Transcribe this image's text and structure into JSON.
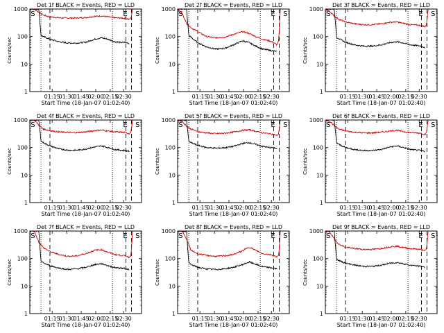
{
  "chart_data": [
    {
      "type": "line",
      "title": "Det 1f BLACK = Events, RED = LLD",
      "xlabel": "Start Time (18-Jan-07 01:02:40)",
      "ylabel": "Counts/sec",
      "x_ticks": [
        "01:15",
        "01:30",
        "01:45",
        "02:00",
        "02:15",
        "02:30"
      ],
      "y_ticks": [
        "1",
        "10",
        "100",
        "1000"
      ],
      "yscale": "log",
      "ylim": [
        1,
        1000
      ],
      "markers": [
        "S",
        "E",
        "S"
      ],
      "series": [
        {
          "color": "#cc0000",
          "x": [
            0.0,
            0.04,
            0.08,
            0.12,
            0.18,
            0.26,
            0.34,
            0.42,
            0.5,
            0.58,
            0.64,
            0.7,
            0.76,
            0.82,
            0.86,
            0.89,
            0.905,
            0.92
          ],
          "y": [
            1000,
            1000,
            760,
            600,
            520,
            480,
            470,
            470,
            490,
            540,
            560,
            520,
            480,
            470,
            460,
            420,
            460,
            1000
          ]
        },
        {
          "color": "#000000",
          "x": [
            0.0,
            0.08,
            0.1,
            0.12,
            0.18,
            0.26,
            0.34,
            0.42,
            0.5,
            0.58,
            0.64,
            0.7,
            0.76,
            0.82,
            0.86,
            0.89
          ],
          "y": [
            1000,
            1000,
            110,
            100,
            80,
            65,
            58,
            58,
            62,
            80,
            90,
            80,
            65,
            60,
            62,
            55
          ]
        }
      ]
    },
    {
      "type": "line",
      "title": "Det 2f BLACK = Events, RED = LLD",
      "xlabel": "Start Time (18-Jan-07 01:02:40)",
      "ylabel": "Counts/sec",
      "x_ticks": [
        "01:15",
        "01:30",
        "01:45",
        "02:00",
        "02:15",
        "02:30"
      ],
      "y_ticks": [
        "1",
        "10",
        "100",
        "1000"
      ],
      "yscale": "log",
      "ylim": [
        1,
        1000
      ],
      "markers": [
        "S",
        "E",
        "S"
      ],
      "series": [
        {
          "color": "#cc0000",
          "x": [
            0.0,
            0.04,
            0.08,
            0.12,
            0.18,
            0.26,
            0.34,
            0.42,
            0.5,
            0.58,
            0.64,
            0.7,
            0.76,
            0.82,
            0.86,
            0.89,
            0.905,
            0.92
          ],
          "y": [
            1000,
            700,
            300,
            210,
            150,
            100,
            90,
            95,
            120,
            150,
            130,
            100,
            80,
            70,
            60,
            50,
            70,
            1000
          ]
        },
        {
          "color": "#000000",
          "x": [
            0.0,
            0.08,
            0.1,
            0.12,
            0.18,
            0.26,
            0.34,
            0.42,
            0.5,
            0.58,
            0.64,
            0.7,
            0.76,
            0.82,
            0.86,
            0.89
          ],
          "y": [
            1000,
            1000,
            110,
            95,
            60,
            42,
            35,
            37,
            50,
            70,
            60,
            45,
            35,
            32,
            30,
            28
          ]
        }
      ]
    },
    {
      "type": "line",
      "title": "Det 3f BLACK = Events, RED = LLD",
      "xlabel": "Start Time (18-Jan-07 01:02:40)",
      "ylabel": "Counts/sec",
      "x_ticks": [
        "01:15",
        "01:30",
        "01:45",
        "02:00",
        "02:15",
        "02:30"
      ],
      "y_ticks": [
        "1",
        "10",
        "100",
        "1000"
      ],
      "yscale": "log",
      "ylim": [
        1,
        1000
      ],
      "markers": [
        "S",
        "E",
        "S"
      ],
      "series": [
        {
          "color": "#cc0000",
          "x": [
            0.0,
            0.04,
            0.08,
            0.12,
            0.18,
            0.26,
            0.34,
            0.42,
            0.5,
            0.58,
            0.64,
            0.7,
            0.76,
            0.82,
            0.86,
            0.89,
            0.905,
            0.92
          ],
          "y": [
            1000,
            800,
            560,
            420,
            340,
            290,
            270,
            270,
            290,
            330,
            340,
            300,
            270,
            260,
            250,
            230,
            260,
            1000
          ]
        },
        {
          "color": "#000000",
          "x": [
            0.0,
            0.08,
            0.1,
            0.12,
            0.18,
            0.26,
            0.34,
            0.42,
            0.5,
            0.58,
            0.64,
            0.7,
            0.76,
            0.82,
            0.86,
            0.89
          ],
          "y": [
            1000,
            1000,
            95,
            85,
            62,
            50,
            45,
            45,
            50,
            60,
            65,
            58,
            50,
            47,
            45,
            40
          ]
        }
      ]
    },
    {
      "type": "line",
      "title": "Det 4f BLACK = Events, RED = LLD",
      "xlabel": "Start Time (18-Jan-07 01:02:40)",
      "ylabel": "Counts/sec",
      "x_ticks": [
        "01:15",
        "01:30",
        "01:45",
        "02:00",
        "02:15",
        "02:30"
      ],
      "y_ticks": [
        "1",
        "10",
        "100",
        "1000"
      ],
      "yscale": "log",
      "ylim": [
        1,
        1000
      ],
      "markers": [
        "S",
        "E",
        "S"
      ],
      "series": [
        {
          "color": "#cc0000",
          "x": [
            0.0,
            0.04,
            0.08,
            0.12,
            0.18,
            0.26,
            0.34,
            0.42,
            0.5,
            0.58,
            0.64,
            0.7,
            0.76,
            0.82,
            0.86,
            0.89,
            0.905,
            0.92
          ],
          "y": [
            1000,
            1000,
            660,
            470,
            410,
            370,
            350,
            350,
            370,
            410,
            430,
            400,
            370,
            360,
            350,
            320,
            360,
            1000
          ]
        },
        {
          "color": "#000000",
          "x": [
            0.0,
            0.08,
            0.1,
            0.12,
            0.18,
            0.26,
            0.34,
            0.42,
            0.5,
            0.58,
            0.64,
            0.7,
            0.76,
            0.82,
            0.86,
            0.89
          ],
          "y": [
            1000,
            1000,
            180,
            150,
            115,
            90,
            80,
            80,
            88,
            105,
            115,
            100,
            85,
            80,
            78,
            72
          ]
        }
      ]
    },
    {
      "type": "line",
      "title": "Det 5f BLACK = Events, RED = LLD",
      "xlabel": "Start Time (18-Jan-07 01:02:40)",
      "ylabel": "Counts/sec",
      "x_ticks": [
        "01:15",
        "01:30",
        "01:45",
        "02:00",
        "02:15",
        "02:30"
      ],
      "y_ticks": [
        "1",
        "10",
        "100",
        "1000"
      ],
      "yscale": "log",
      "ylim": [
        1,
        1000
      ],
      "markers": [
        "S",
        "E",
        "S"
      ],
      "series": [
        {
          "color": "#cc0000",
          "x": [
            0.0,
            0.04,
            0.08,
            0.12,
            0.18,
            0.26,
            0.34,
            0.42,
            0.5,
            0.58,
            0.64,
            0.7,
            0.76,
            0.82,
            0.86,
            0.89,
            0.905,
            0.92
          ],
          "y": [
            1000,
            900,
            600,
            470,
            380,
            340,
            320,
            330,
            360,
            420,
            440,
            390,
            340,
            320,
            300,
            270,
            320,
            1000
          ]
        },
        {
          "color": "#000000",
          "x": [
            0.0,
            0.08,
            0.1,
            0.12,
            0.18,
            0.26,
            0.34,
            0.42,
            0.5,
            0.58,
            0.64,
            0.7,
            0.76,
            0.82,
            0.86,
            0.89
          ],
          "y": [
            1000,
            1000,
            170,
            150,
            120,
            100,
            95,
            98,
            110,
            140,
            150,
            130,
            110,
            100,
            98,
            90
          ]
        }
      ]
    },
    {
      "type": "line",
      "title": "Det 6f BLACK = Events, RED = LLD",
      "xlabel": "Start Time (18-Jan-07 01:02:40)",
      "ylabel": "Counts/sec",
      "x_ticks": [
        "01:15",
        "01:30",
        "01:45",
        "02:00",
        "02:15",
        "02:30"
      ],
      "y_ticks": [
        "1",
        "10",
        "100",
        "1000"
      ],
      "yscale": "log",
      "ylim": [
        1,
        1000
      ],
      "markers": [
        "S",
        "E",
        "S"
      ],
      "series": [
        {
          "color": "#cc0000",
          "x": [
            0.0,
            0.04,
            0.08,
            0.12,
            0.18,
            0.26,
            0.34,
            0.42,
            0.5,
            0.58,
            0.64,
            0.7,
            0.76,
            0.82,
            0.86,
            0.89,
            0.905,
            0.92
          ],
          "y": [
            1000,
            900,
            620,
            470,
            400,
            360,
            340,
            340,
            360,
            400,
            420,
            380,
            350,
            340,
            330,
            300,
            340,
            1000
          ]
        },
        {
          "color": "#000000",
          "x": [
            0.0,
            0.08,
            0.1,
            0.12,
            0.18,
            0.26,
            0.34,
            0.42,
            0.5,
            0.58,
            0.64,
            0.7,
            0.76,
            0.82,
            0.86,
            0.89
          ],
          "y": [
            1000,
            1000,
            150,
            130,
            100,
            85,
            78,
            78,
            85,
            105,
            115,
            100,
            85,
            80,
            78,
            72
          ]
        }
      ]
    },
    {
      "type": "line",
      "title": "Det 7f BLACK = Events, RED = LLD",
      "xlabel": "Start Time (18-Jan-07 01:02:40)",
      "ylabel": "Counts/sec",
      "x_ticks": [
        "01:15",
        "01:30",
        "01:45",
        "02:00",
        "02:15",
        "02:30"
      ],
      "y_ticks": [
        "1",
        "10",
        "100",
        "1000"
      ],
      "yscale": "log",
      "ylim": [
        1,
        1000
      ],
      "markers": [
        "S",
        "E",
        "S"
      ],
      "series": [
        {
          "color": "#cc0000",
          "x": [
            0.0,
            0.04,
            0.08,
            0.12,
            0.18,
            0.26,
            0.34,
            0.42,
            0.5,
            0.58,
            0.64,
            0.7,
            0.76,
            0.82,
            0.86,
            0.89,
            0.905,
            0.92
          ],
          "y": [
            1000,
            1000,
            400,
            250,
            180,
            140,
            120,
            125,
            150,
            200,
            210,
            170,
            140,
            130,
            125,
            110,
            130,
            1000
          ]
        },
        {
          "color": "#000000",
          "x": [
            0.0,
            0.08,
            0.1,
            0.12,
            0.18,
            0.26,
            0.34,
            0.42,
            0.5,
            0.58,
            0.64,
            0.7,
            0.76,
            0.82,
            0.86,
            0.89
          ],
          "y": [
            1000,
            1000,
            80,
            70,
            55,
            45,
            40,
            42,
            48,
            60,
            65,
            55,
            47,
            45,
            43,
            40
          ]
        }
      ]
    },
    {
      "type": "line",
      "title": "Det 8f BLACK = Events, RED = LLD",
      "xlabel": "Start Time (18-Jan-07 01:02:40)",
      "ylabel": "Counts/sec",
      "x_ticks": [
        "01:15",
        "01:30",
        "01:45",
        "02:00",
        "02:15",
        "02:30"
      ],
      "y_ticks": [
        "1",
        "10",
        "100",
        "1000"
      ],
      "yscale": "log",
      "ylim": [
        1,
        1000
      ],
      "markers": [
        "S",
        "E",
        "S"
      ],
      "series": [
        {
          "color": "#cc0000",
          "x": [
            0.0,
            0.04,
            0.08,
            0.12,
            0.18,
            0.26,
            0.34,
            0.42,
            0.5,
            0.58,
            0.64,
            0.7,
            0.76,
            0.82,
            0.86,
            0.89,
            0.905,
            0.92
          ],
          "y": [
            1000,
            1000,
            500,
            200,
            150,
            130,
            120,
            125,
            140,
            190,
            260,
            200,
            150,
            140,
            130,
            110,
            130,
            1000
          ]
        },
        {
          "color": "#000000",
          "x": [
            0.0,
            0.08,
            0.1,
            0.12,
            0.18,
            0.26,
            0.34,
            0.42,
            0.5,
            0.58,
            0.64,
            0.7,
            0.76,
            0.82,
            0.86,
            0.89
          ],
          "y": [
            1000,
            1000,
            70,
            60,
            48,
            42,
            40,
            42,
            48,
            60,
            75,
            62,
            50,
            47,
            45,
            42
          ]
        }
      ]
    },
    {
      "type": "line",
      "title": "Det 9f BLACK = Events, RED = LLD",
      "xlabel": "Start Time (18-Jan-07 01:02:40)",
      "ylabel": "Counts/sec",
      "x_ticks": [
        "01:15",
        "01:30",
        "01:45",
        "02:00",
        "02:15",
        "02:30"
      ],
      "y_ticks": [
        "1",
        "10",
        "100",
        "1000"
      ],
      "yscale": "log",
      "ylim": [
        1,
        1000
      ],
      "markers": [
        "S",
        "E",
        "S"
      ],
      "series": [
        {
          "color": "#cc0000",
          "x": [
            0.0,
            0.04,
            0.08,
            0.12,
            0.18,
            0.26,
            0.34,
            0.42,
            0.5,
            0.58,
            0.64,
            0.7,
            0.76,
            0.82,
            0.86,
            0.89,
            0.905,
            0.92
          ],
          "y": [
            1000,
            900,
            520,
            330,
            260,
            230,
            215,
            215,
            230,
            270,
            280,
            250,
            230,
            220,
            210,
            190,
            220,
            1000
          ]
        },
        {
          "color": "#000000",
          "x": [
            0.0,
            0.08,
            0.1,
            0.12,
            0.18,
            0.26,
            0.34,
            0.42,
            0.5,
            0.58,
            0.64,
            0.7,
            0.76,
            0.82,
            0.86,
            0.89
          ],
          "y": [
            1000,
            1000,
            95,
            85,
            68,
            58,
            52,
            52,
            57,
            68,
            72,
            65,
            57,
            54,
            52,
            48
          ]
        }
      ]
    }
  ]
}
